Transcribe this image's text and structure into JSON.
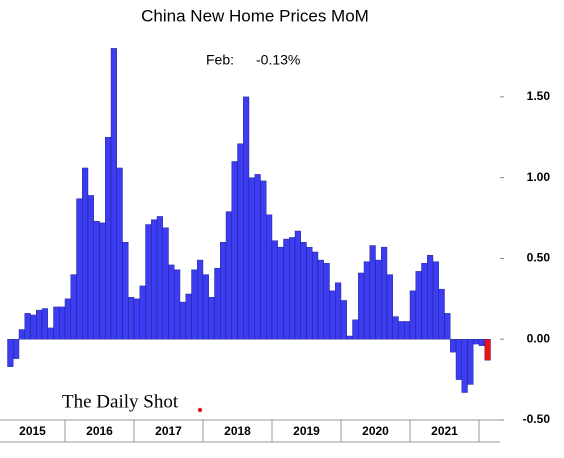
{
  "chart_data": {
    "type": "bar",
    "title": "China New Home Prices MoM",
    "annotation_label": "Feb:",
    "annotation_value": "-0.13%",
    "watermark": "The Daily Shot",
    "color": "#3c3cf0",
    "last_bar_color": "#ee1111",
    "categories": [
      "2015",
      "2015",
      "2015",
      "2015",
      "2015",
      "2015",
      "2015",
      "2015",
      "2015",
      "2015",
      "2016",
      "2016",
      "2016",
      "2016",
      "2016",
      "2016",
      "2016",
      "2016",
      "2016",
      "2016",
      "2016",
      "2016",
      "2017",
      "2017",
      "2017",
      "2017",
      "2017",
      "2017",
      "2017",
      "2017",
      "2017",
      "2017",
      "2017",
      "2017",
      "2018",
      "2018",
      "2018",
      "2018",
      "2018",
      "2018",
      "2018",
      "2018",
      "2018",
      "2018",
      "2018",
      "2018",
      "2019",
      "2019",
      "2019",
      "2019",
      "2019",
      "2019",
      "2019",
      "2019",
      "2019",
      "2019",
      "2019",
      "2019",
      "2020",
      "2020",
      "2020",
      "2020",
      "2020",
      "2020",
      "2020",
      "2020",
      "2020",
      "2020",
      "2020",
      "2020",
      "2021",
      "2021",
      "2021",
      "2021",
      "2021",
      "2021",
      "2021",
      "2021",
      "2021",
      "2021",
      "2021",
      "2021",
      null,
      null
    ],
    "values": [
      -0.17,
      -0.12,
      0.06,
      0.16,
      0.15,
      0.18,
      0.19,
      0.07,
      0.2,
      0.2,
      0.25,
      0.4,
      0.87,
      1.06,
      0.89,
      0.73,
      0.72,
      1.25,
      1.8,
      1.06,
      0.6,
      0.26,
      0.25,
      0.33,
      0.71,
      0.74,
      0.76,
      0.69,
      0.46,
      0.43,
      0.23,
      0.28,
      0.43,
      0.49,
      0.4,
      0.26,
      0.44,
      0.6,
      0.79,
      1.1,
      1.21,
      1.5,
      1.0,
      1.02,
      0.98,
      0.77,
      0.61,
      0.57,
      0.62,
      0.63,
      0.67,
      0.6,
      0.57,
      0.54,
      0.49,
      0.47,
      0.3,
      0.35,
      0.24,
      0.02,
      0.12,
      0.41,
      0.48,
      0.58,
      0.49,
      0.57,
      0.4,
      0.14,
      0.11,
      0.11,
      0.3,
      0.42,
      0.47,
      0.52,
      0.48,
      0.31,
      0.16,
      -0.08,
      -0.25,
      -0.33,
      -0.28,
      -0.03,
      -0.04,
      -0.13
    ],
    "ylim": [
      -0.5,
      2.05
    ],
    "yticks": [
      {
        "value": -0.5,
        "label": "-0.50"
      },
      {
        "value": 0,
        "label": "0.00"
      },
      {
        "value": 0.5,
        "label": "0.50"
      },
      {
        "value": 1,
        "label": "1.00"
      },
      {
        "value": 1.5,
        "label": "1.50"
      }
    ],
    "grid": false
  }
}
